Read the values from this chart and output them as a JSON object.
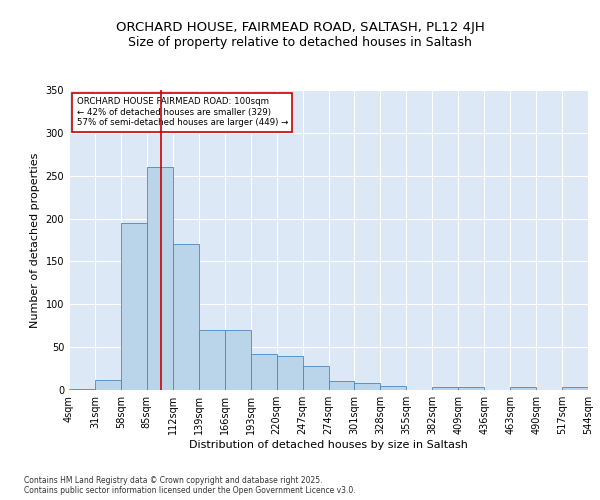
{
  "title1": "ORCHARD HOUSE, FAIRMEAD ROAD, SALTASH, PL12 4JH",
  "title2": "Size of property relative to detached houses in Saltash",
  "xlabel": "Distribution of detached houses by size in Saltash",
  "ylabel": "Number of detached properties",
  "bin_edges": [
    4,
    31,
    58,
    85,
    112,
    139,
    166,
    193,
    220,
    247,
    274,
    301,
    328,
    355,
    382,
    409,
    436,
    463,
    490,
    517,
    544
  ],
  "bar_heights": [
    1,
    12,
    195,
    260,
    170,
    70,
    70,
    42,
    40,
    28,
    10,
    8,
    5,
    0,
    4,
    4,
    0,
    3,
    0,
    4
  ],
  "bar_color": "#bad4ea",
  "bar_edge_color": "#4a86c0",
  "vline_x": 100,
  "vline_color": "#cc0000",
  "annotation_text": "ORCHARD HOUSE FAIRMEAD ROAD: 100sqm\n← 42% of detached houses are smaller (329)\n57% of semi-detached houses are larger (449) →",
  "annotation_box_color": "#ffffff",
  "annotation_box_edge": "#cc0000",
  "footer": "Contains HM Land Registry data © Crown copyright and database right 2025.\nContains public sector information licensed under the Open Government Licence v3.0.",
  "ylim": [
    0,
    350
  ],
  "yticks": [
    0,
    50,
    100,
    150,
    200,
    250,
    300,
    350
  ],
  "background_color": "#dce8f5",
  "fig_background": "#ffffff",
  "title_fontsize": 9.5,
  "subtitle_fontsize": 9,
  "axis_label_fontsize": 8,
  "tick_fontsize": 7
}
